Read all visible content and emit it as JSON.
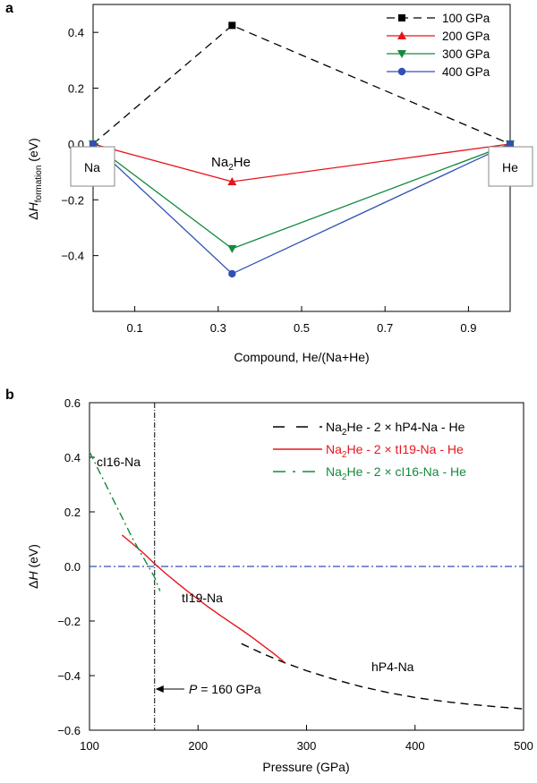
{
  "chart_data": [
    {
      "panel_label": "a",
      "type": "line",
      "title": "",
      "xlabel": "Compound, He/(Na+He)",
      "ylabel_parts": [
        "Δ",
        "H",
        "formation",
        " (eV)"
      ],
      "xlim": [
        0,
        1
      ],
      "ylim": [
        -0.6,
        0.5
      ],
      "xticks": [
        "0.1",
        "0.3",
        "0.5",
        "0.7",
        "0.9"
      ],
      "xtick_values": [
        0.1,
        0.3,
        0.5,
        0.7,
        0.9
      ],
      "yticks": [
        "−0.4",
        "−0.2",
        "0.0",
        "0.2",
        "0.4"
      ],
      "ytick_values": [
        -0.4,
        -0.2,
        0.0,
        0.2,
        0.4
      ],
      "legend_position": "top-right",
      "series": [
        {
          "name": "100 GPa",
          "color": "#000000",
          "dash": "dashed",
          "marker": "square",
          "x": [
            0,
            0.3333,
            1
          ],
          "y": [
            0,
            0.425,
            0
          ]
        },
        {
          "name": "200 GPa",
          "color": "#e8141b",
          "dash": "solid",
          "marker": "triangle-up",
          "x": [
            0,
            0.3333,
            1
          ],
          "y": [
            0,
            -0.135,
            0
          ]
        },
        {
          "name": "300 GPa",
          "color": "#138a3c",
          "dash": "solid",
          "marker": "triangle-down",
          "x": [
            0,
            0.3333,
            1
          ],
          "y": [
            0,
            -0.375,
            0
          ]
        },
        {
          "name": "400 GPa",
          "color": "#2f50b4",
          "dash": "solid",
          "marker": "circle",
          "x": [
            0,
            0.3333,
            1
          ],
          "y": [
            0,
            -0.465,
            0
          ]
        }
      ],
      "annotations": {
        "left_box": "Na",
        "right_box": "He",
        "compound_main": "Na",
        "compound_sub": "2",
        "compound_tail": "He"
      }
    },
    {
      "panel_label": "b",
      "type": "line",
      "title": "",
      "xlabel": "Pressure (GPa)",
      "ylabel_parts": [
        "Δ",
        "H",
        "",
        " (eV)"
      ],
      "xlim": [
        100,
        500
      ],
      "ylim": [
        -0.6,
        0.6
      ],
      "xticks": [
        "100",
        "200",
        "300",
        "400",
        "500"
      ],
      "xtick_values": [
        100,
        200,
        300,
        400,
        500
      ],
      "yticks": [
        "−0.6",
        "−0.4",
        "−0.2",
        "0.0",
        "0.2",
        "0.4",
        "0.6"
      ],
      "ytick_values": [
        -0.6,
        -0.4,
        -0.2,
        0.0,
        0.2,
        0.4,
        0.6
      ],
      "legend_position": "top-right",
      "series": [
        {
          "legend_parts": [
            "Na",
            "2",
            "He - 2 × hP4-Na - He"
          ],
          "color": "#000000",
          "dash": "dashed",
          "x": [
            240,
            260,
            280,
            300,
            325,
            350,
            375,
            400,
            425,
            450,
            475,
            500
          ],
          "y": [
            -0.283,
            -0.32,
            -0.353,
            -0.382,
            -0.413,
            -0.44,
            -0.462,
            -0.48,
            -0.494,
            -0.505,
            -0.514,
            -0.522
          ]
        },
        {
          "legend_parts": [
            "Na",
            "2",
            "He - 2 × tI19-Na - He"
          ],
          "color": "#e8141b",
          "dash": "solid",
          "x": [
            130,
            140,
            150,
            160,
            170,
            180,
            190,
            200,
            210,
            220,
            230,
            240,
            250,
            260,
            270,
            280
          ],
          "y": [
            0.115,
            0.082,
            0.048,
            0.01,
            -0.025,
            -0.058,
            -0.09,
            -0.12,
            -0.15,
            -0.178,
            -0.205,
            -0.232,
            -0.26,
            -0.29,
            -0.32,
            -0.352
          ]
        },
        {
          "legend_parts": [
            "Na",
            "2",
            "He - 2 × cI16-Na - He"
          ],
          "color": "#138a3c",
          "dash": "dashdot",
          "x": [
            100,
            110,
            120,
            130,
            140,
            150,
            160,
            165
          ],
          "y": [
            0.42,
            0.34,
            0.26,
            0.18,
            0.1,
            0.03,
            -0.04,
            -0.09
          ]
        }
      ],
      "reference_lines": {
        "zero_color": "#2f50b4",
        "vertical_x": 160
      },
      "annotations": {
        "cI16": "cI16-Na",
        "tI19": "tI19-Na",
        "hP4": "hP4-Na",
        "pressure_italic": "P",
        "pressure_text": " = 160 GPa"
      }
    }
  ]
}
